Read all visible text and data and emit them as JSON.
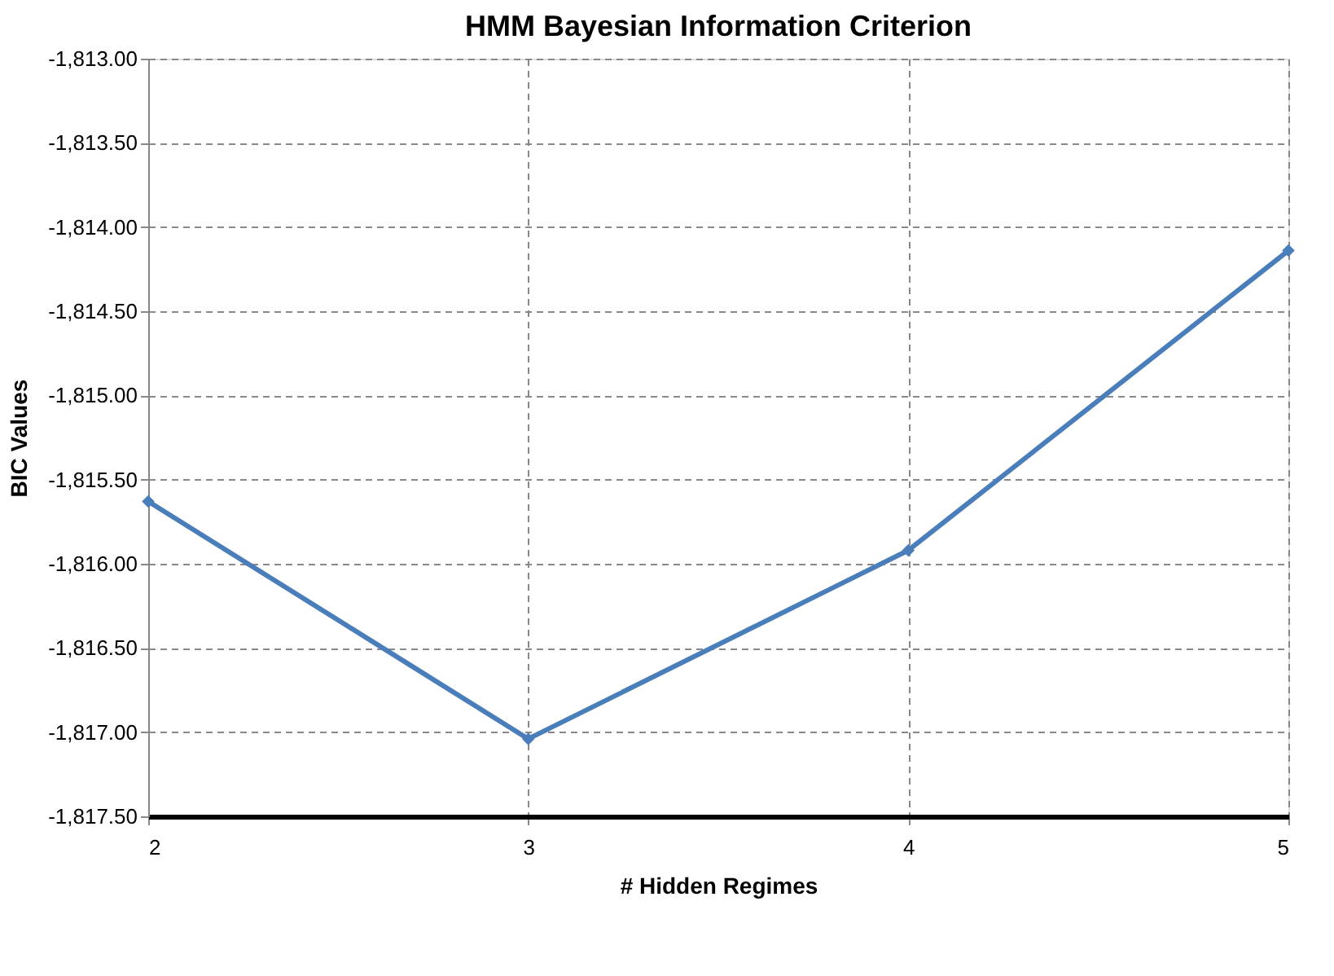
{
  "chart_data": {
    "type": "line",
    "title": "HMM Bayesian Information Criterion",
    "xlabel": "#  Hidden Regimes",
    "ylabel": "BIC Values",
    "x": [
      2,
      3,
      4,
      5
    ],
    "series": [
      {
        "color": "#4a7ebb",
        "values": [
          -1815.63,
          -1817.04,
          -1815.92,
          -1814.14
        ]
      }
    ],
    "xlim": [
      2,
      5
    ],
    "xticks": [
      2,
      3,
      4,
      5
    ],
    "ylim": [
      -1817.5,
      -1813.0
    ],
    "yticks": [
      {
        "value": -1817.5,
        "label": "-1,817.50"
      },
      {
        "value": -1817.0,
        "label": "-1,817.00"
      },
      {
        "value": -1816.5,
        "label": "-1,816.50"
      },
      {
        "value": -1816.0,
        "label": "-1,816.00"
      },
      {
        "value": -1815.5,
        "label": "-1,815.50"
      },
      {
        "value": -1815.0,
        "label": "-1,815.00"
      },
      {
        "value": -1814.5,
        "label": "-1,814.50"
      },
      {
        "value": -1814.0,
        "label": "-1,814.00"
      },
      {
        "value": -1813.5,
        "label": "-1,813.50"
      },
      {
        "value": -1813.0,
        "label": "-1,813.00"
      }
    ],
    "grid": true,
    "marker": "diamond",
    "line_style": "solid",
    "legend": false
  }
}
